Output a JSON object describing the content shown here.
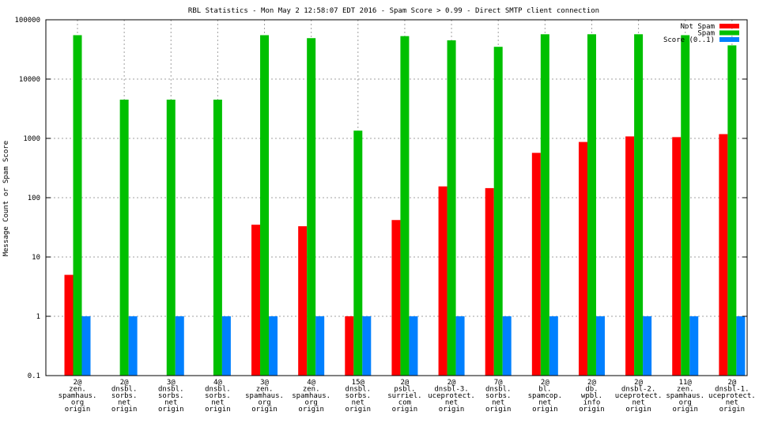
{
  "chart_data": {
    "type": "bar",
    "title": "RBL Statistics - Mon May  2 12:58:07 EDT 2016 - Spam Score > 0.99 - Direct SMTP client connection",
    "ylabel": "Message Count or Spam Score",
    "xlabel": "",
    "yscale": "log",
    "ylim": [
      0.1,
      100000
    ],
    "yticks": [
      "0.1",
      "1",
      "10",
      "100",
      "1000",
      "10000",
      "100000"
    ],
    "grid": true,
    "legend_position": "top-right",
    "categories": [
      [
        "2@",
        "zen.",
        "spamhaus.",
        "org",
        "origin"
      ],
      [
        "2@",
        "dnsbl.",
        "sorbs.",
        "net",
        "origin"
      ],
      [
        "3@",
        "dnsbl.",
        "sorbs.",
        "net",
        "origin"
      ],
      [
        "4@",
        "dnsbl.",
        "sorbs.",
        "net",
        "origin"
      ],
      [
        "3@",
        "zen.",
        "spamhaus.",
        "org",
        "origin"
      ],
      [
        "4@",
        "zen.",
        "spamhaus.",
        "org",
        "origin"
      ],
      [
        "15@",
        "dnsbl.",
        "sorbs.",
        "net",
        "origin"
      ],
      [
        "2@",
        "psbl.",
        "surriel.",
        "com",
        "origin"
      ],
      [
        "2@",
        "dnsbl-3.",
        "uceprotect.",
        "net",
        "origin"
      ],
      [
        "7@",
        "dnsbl.",
        "sorbs.",
        "net",
        "origin"
      ],
      [
        "2@",
        "bl.",
        "spamcop.",
        "net",
        "origin"
      ],
      [
        "2@",
        "db.",
        "wpbl.",
        "info",
        "origin"
      ],
      [
        "2@",
        "dnsbl-2.",
        "uceprotect.",
        "net",
        "origin"
      ],
      [
        "11@",
        "zen.",
        "spamhaus.",
        "org",
        "origin"
      ],
      [
        "2@",
        "dnsbl-1.",
        "uceprotect.",
        "net",
        "origin"
      ]
    ],
    "series": [
      {
        "name": "Not Spam",
        "color": "#ff0000",
        "values": [
          5,
          null,
          null,
          null,
          35,
          33,
          1,
          42,
          155,
          145,
          570,
          870,
          1080,
          1050,
          1180
        ]
      },
      {
        "name": "Spam",
        "color": "#00c000",
        "values": [
          55000,
          4500,
          4500,
          4500,
          55000,
          49000,
          1350,
          53000,
          45000,
          35000,
          57000,
          57000,
          57000,
          55000,
          37000
        ]
      },
      {
        "name": "Score (0..1)",
        "color": "#0080ff",
        "values": [
          1,
          1,
          1,
          1,
          1,
          1,
          1,
          1,
          1,
          1,
          1,
          1,
          1,
          1,
          1
        ]
      }
    ]
  }
}
